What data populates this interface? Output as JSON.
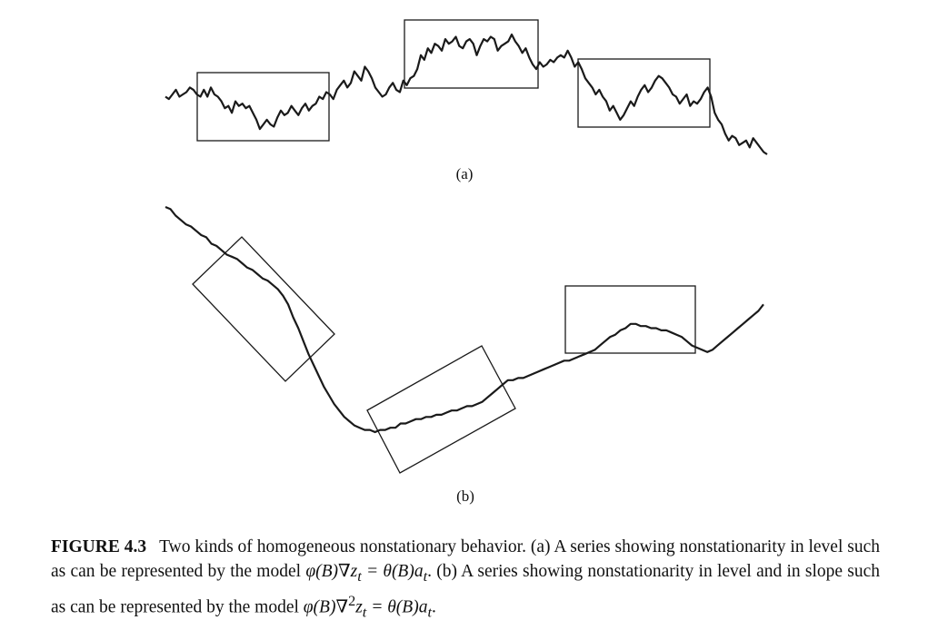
{
  "chart_data": [
    {
      "panel": "(a)",
      "type": "line",
      "description": "nonstationarity in level",
      "y": [
        2,
        1,
        3,
        5,
        2,
        3,
        4,
        6,
        5,
        3,
        2,
        5,
        2,
        6,
        3,
        2,
        0,
        -3,
        -2,
        -5,
        0,
        -2,
        -1,
        -3,
        -2,
        -5,
        -8,
        -12,
        -10,
        -8,
        -10,
        -11,
        -7,
        -4,
        -6,
        -5,
        -2,
        -4,
        -6,
        -3,
        -1,
        -4,
        -2,
        -1,
        2,
        1,
        4,
        3,
        1,
        5,
        7,
        9,
        6,
        8,
        13,
        11,
        9,
        15,
        13,
        10,
        6,
        4,
        2,
        3,
        6,
        8,
        5,
        4,
        9,
        7,
        10,
        11,
        14,
        20,
        18,
        23,
        21,
        25,
        24,
        22,
        27,
        25,
        26,
        28,
        24,
        23,
        26,
        27,
        25,
        20,
        24,
        27,
        26,
        28,
        27,
        22,
        24,
        25,
        26,
        29,
        26,
        24,
        21,
        23,
        19,
        16,
        14,
        17,
        15,
        16,
        18,
        17,
        19,
        20,
        19,
        22,
        19,
        15,
        17,
        14,
        10,
        8,
        6,
        3,
        5,
        2,
        0,
        -4,
        -2,
        -5,
        -8,
        -6,
        -3,
        0,
        -2,
        2,
        5,
        7,
        4,
        6,
        9,
        11,
        10,
        8,
        6,
        3,
        2,
        -1,
        1,
        3,
        -2,
        0,
        -1,
        1,
        4,
        6,
        2,
        -5,
        -8,
        -10,
        -14,
        -17,
        -15,
        -16,
        -19,
        -18,
        -17,
        -20,
        -16,
        -18,
        -20,
        -22,
        -23
      ]
    },
    {
      "panel": "(b)",
      "type": "line",
      "description": "nonstationarity in level and in slope",
      "y": [
        100,
        99,
        96,
        94,
        92,
        91,
        89,
        87,
        86,
        83,
        82,
        80,
        78,
        77,
        76,
        74,
        72,
        71,
        69,
        67,
        66,
        64,
        62,
        59,
        55,
        49,
        44,
        38,
        32,
        27,
        22,
        17,
        13,
        9,
        6,
        3,
        1,
        -1,
        -2,
        -3,
        -3,
        -4,
        -3,
        -3,
        -2,
        -2,
        0,
        0,
        1,
        2,
        2,
        3,
        3,
        4,
        4,
        5,
        6,
        6,
        7,
        8,
        8,
        9,
        10,
        12,
        14,
        16,
        18,
        20,
        20,
        21,
        21,
        22,
        23,
        24,
        25,
        26,
        27,
        28,
        29,
        29,
        30,
        31,
        32,
        33,
        34,
        36,
        38,
        40,
        41,
        43,
        44,
        46,
        46,
        45,
        45,
        44,
        44,
        43,
        43,
        42,
        41,
        40,
        38,
        36,
        35,
        34,
        33,
        34,
        36,
        38,
        40,
        42,
        44,
        46,
        48,
        50,
        52,
        55
      ]
    }
  ],
  "labels": {
    "a": "(a)",
    "b": "(b)"
  },
  "caption": {
    "figure_number": "FIGURE 4.3",
    "part1": "Two kinds of homogeneous nonstationary behavior. (a) A series showing nonstationarity in level such as can be represented by the model",
    "model_a": "φ(B)∇z",
    "sub_t1": "t",
    "eq1": " = θ(B)a",
    "sub_t2": "t",
    "part2": ". (b) A series showing nonstationarity in level and in slope such as can be represented by the model",
    "model_b": "φ(B)∇",
    "sup_2": "2",
    "z": "z",
    "sub_t3": "t",
    "eq2": " = θ(B)a",
    "sub_t4": "t",
    "end": "."
  },
  "colors": {
    "line": "#1a1a1a",
    "box": "#1a1a1a"
  }
}
